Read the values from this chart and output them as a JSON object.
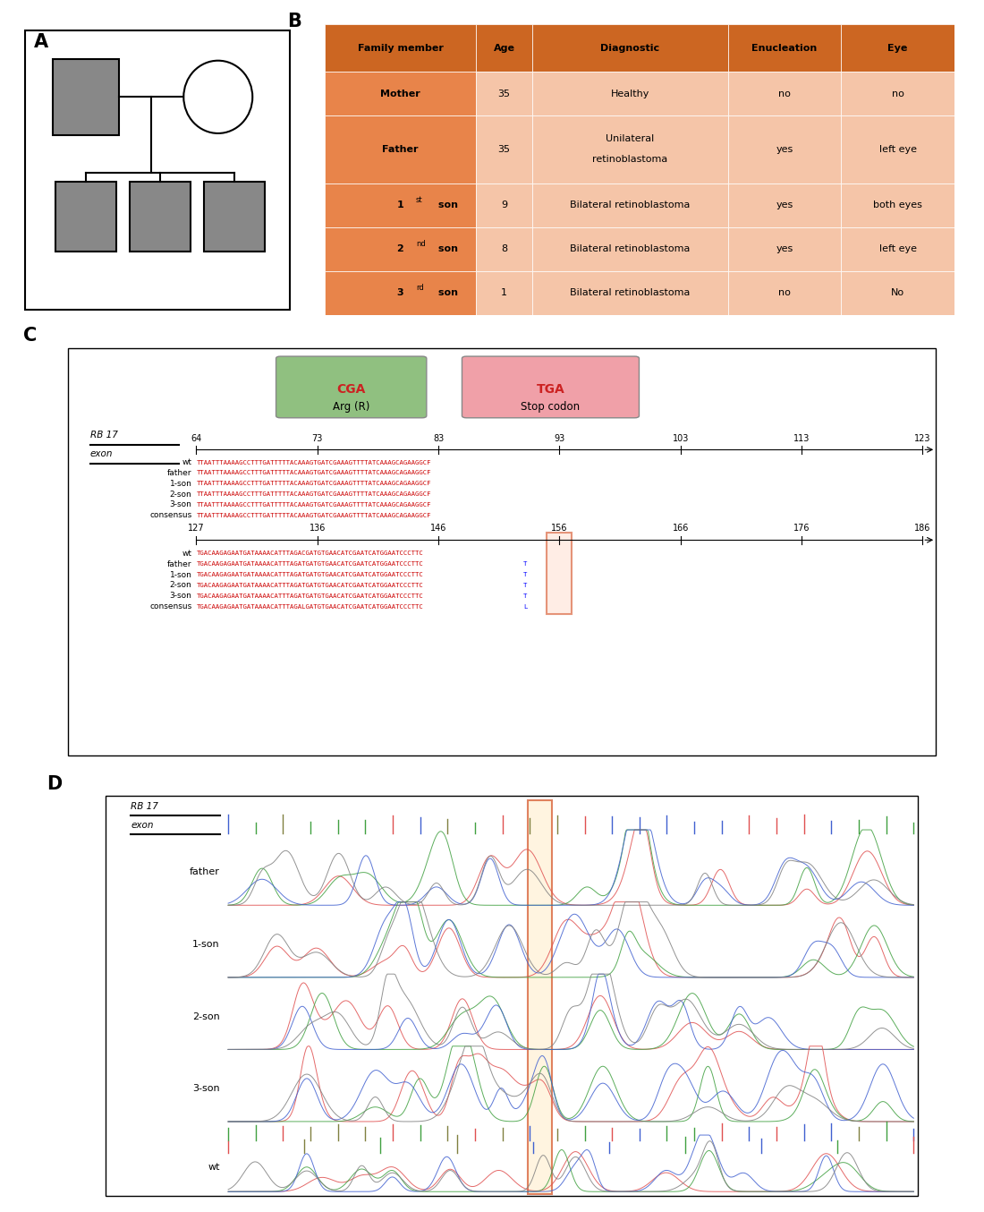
{
  "panel_A_label": "A",
  "panel_B_label": "B",
  "panel_C_label": "C",
  "panel_D_label": "D",
  "table_headers": [
    "Family member",
    "Age",
    "Diagnostic",
    "Enucleation",
    "Eye"
  ],
  "table_rows": [
    [
      "Mother",
      "35",
      "Healthy",
      "no",
      "no"
    ],
    [
      "Father",
      "35",
      "Unilateral\n\nretinoblastoma",
      "yes",
      "left eye"
    ],
    [
      "1st son",
      "9",
      "Bilateral retinoblastoma",
      "yes",
      "both eyes"
    ],
    [
      "2nd son",
      "8",
      "Bilateral retinoblastoma",
      "yes",
      "left eye"
    ],
    [
      "3rd son",
      "1",
      "Bilateral retinoblastoma",
      "no",
      "No"
    ]
  ],
  "header_bg": "#CC6622",
  "row_bg_orange": "#E8844A",
  "row_bg_light": "#F5C5A8",
  "cga_box_color": "#90C080",
  "tga_box_color": "#F0A0A8",
  "seq_row1_nums": [
    "64",
    "73",
    "83",
    "93",
    "103",
    "113",
    "123"
  ],
  "seq_row2_nums": [
    "127",
    "136",
    "146",
    "156",
    "166",
    "176",
    "186"
  ],
  "seq_labels": [
    "wt",
    "father",
    "1-son",
    "2-son",
    "3-son",
    "consensus"
  ],
  "seq1_text": "TTAATTTAAAAGCCTTTGATTTTTACAAAGTGATCGAAAGTTTTATCAAAGCAGAAGGCF",
  "seq2_before": "TGACAAGAGAATGATAAAACATTTAGA",
  "seq2_wt_mid": "C",
  "seq2_mut_mid": "T",
  "seq2_after": "GATGTGAACATCGAATCATGGAATCCCTTC",
  "seq2_consensus_mid": "L",
  "highlight_box_color": "#CC3300",
  "background_color": "#FFFFFF",
  "chrom_colors": [
    "#E05050",
    "#40A040",
    "#4060D0",
    "#808080"
  ]
}
